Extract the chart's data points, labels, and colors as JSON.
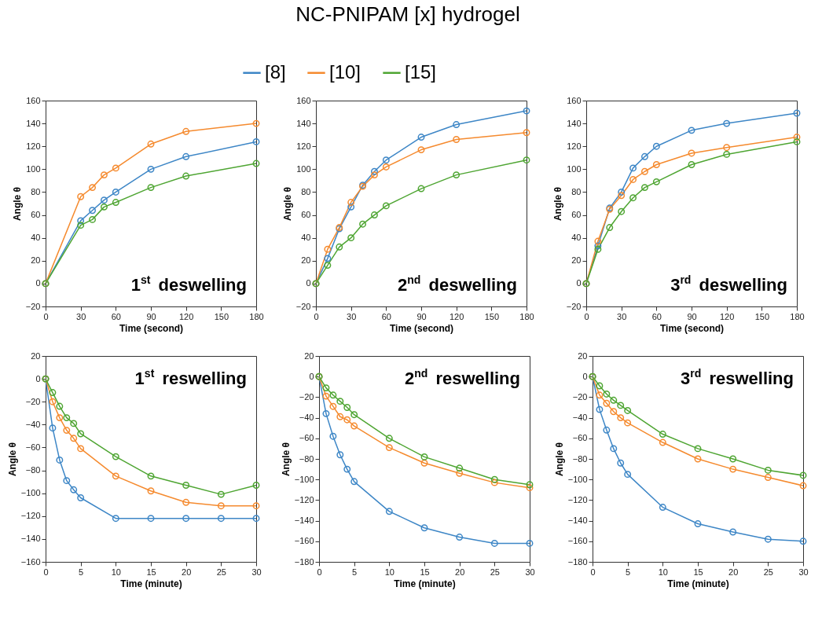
{
  "chart_data": [
    {
      "type": "other",
      "title": "NC-PNIPAM [x] hydrogel"
    },
    {
      "type": "line",
      "xlabel": "Time (second)",
      "ylabel": "Angle θ",
      "annotations": [
        "1$^{st}$ deswelling"
      ],
      "x": [
        0,
        30,
        40,
        50,
        60,
        90,
        120,
        180
      ],
      "xlim": [
        0,
        180
      ],
      "xticks": [
        0,
        30,
        60,
        90,
        120,
        150,
        180
      ],
      "ylim": [
        -20,
        160
      ],
      "yticks": [
        -20,
        0,
        20,
        40,
        60,
        80,
        100,
        120,
        140,
        160
      ],
      "grid": false,
      "legend": "top",
      "marker": "circle",
      "line_style": "solid",
      "series": [
        {
          "name": "[8]",
          "color": "#3d86c6",
          "values": [
            0,
            55,
            64,
            73,
            80,
            100,
            111,
            124
          ]
        },
        {
          "name": "[10]",
          "color": "#f58a2e",
          "values": [
            0,
            76,
            84,
            95,
            101,
            122,
            133,
            140
          ]
        },
        {
          "name": "[15]",
          "color": "#4ea532",
          "values": [
            0,
            51,
            56,
            67,
            71,
            84,
            94,
            105
          ]
        }
      ]
    },
    {
      "type": "line",
      "xlabel": "Time (second)",
      "ylabel": "Angle θ",
      "annotations": [
        "2$^{nd}$ deswelling"
      ],
      "x": [
        0,
        10,
        20,
        30,
        40,
        50,
        60,
        90,
        120,
        180
      ],
      "xlim": [
        0,
        180
      ],
      "xticks": [
        0,
        30,
        60,
        90,
        120,
        150,
        180
      ],
      "ylim": [
        -20,
        160
      ],
      "yticks": [
        -20,
        0,
        20,
        40,
        60,
        80,
        100,
        120,
        140,
        160
      ],
      "grid": false,
      "marker": "circle",
      "line_style": "solid",
      "series": [
        {
          "color": "#3d86c6",
          "values": [
            0,
            22,
            48,
            67,
            86,
            98,
            108,
            128,
            139,
            151
          ]
        },
        {
          "color": "#f58a2e",
          "values": [
            0,
            30,
            49,
            71,
            85,
            95,
            102,
            117,
            126,
            132
          ]
        },
        {
          "color": "#4ea532",
          "values": [
            0,
            16,
            32,
            40,
            52,
            60,
            68,
            83,
            95,
            108
          ]
        }
      ]
    },
    {
      "type": "line",
      "xlabel": "Time (second)",
      "ylabel": "Angle θ",
      "annotations": [
        "3$^{rd}$ deswelling"
      ],
      "x": [
        0,
        10,
        20,
        30,
        40,
        50,
        60,
        90,
        120,
        180
      ],
      "xlim": [
        0,
        180
      ],
      "xticks": [
        0,
        30,
        60,
        90,
        120,
        150,
        180
      ],
      "ylim": [
        -20,
        160
      ],
      "yticks": [
        -20,
        0,
        20,
        40,
        60,
        80,
        100,
        120,
        140,
        160
      ],
      "grid": false,
      "marker": "circle",
      "line_style": "solid",
      "series": [
        {
          "color": "#3d86c6",
          "values": [
            0,
            33,
            66,
            80,
            101,
            111,
            120,
            134,
            140,
            149
          ]
        },
        {
          "color": "#f58a2e",
          "values": [
            0,
            37,
            65,
            77,
            91,
            98,
            104,
            114,
            119,
            128
          ]
        },
        {
          "color": "#4ea532",
          "values": [
            0,
            30,
            49,
            63,
            75,
            84,
            89,
            104,
            113,
            124
          ]
        }
      ]
    },
    {
      "type": "line",
      "xlabel": "Time (minute)",
      "ylabel": "Angle θ",
      "annotations": [
        "1$^{st}$ reswelling"
      ],
      "x": [
        0,
        1,
        2,
        3,
        4,
        5,
        10,
        15,
        20,
        25,
        30
      ],
      "xlim": [
        0,
        30
      ],
      "xticks": [
        0,
        5,
        10,
        15,
        20,
        25,
        30
      ],
      "ylim": [
        -160,
        20
      ],
      "yticks": [
        -160,
        -140,
        -120,
        -100,
        -80,
        -60,
        -40,
        -20,
        0,
        20
      ],
      "grid": false,
      "marker": "circle",
      "line_style": "solid",
      "series": [
        {
          "color": "#3d86c6",
          "values": [
            0,
            -43,
            -71,
            -89,
            -97,
            -104,
            -122,
            -122,
            -122,
            -122,
            -122
          ]
        },
        {
          "color": "#f58a2e",
          "values": [
            0,
            -20,
            -34,
            -45,
            -52,
            -61,
            -85,
            -98,
            -108,
            -111,
            -111
          ]
        },
        {
          "color": "#4ea532",
          "values": [
            0,
            -12,
            -24,
            -34,
            -39,
            -48,
            -68,
            -85,
            -93,
            -101,
            -93
          ]
        }
      ]
    },
    {
      "type": "line",
      "xlabel": "Time (minute)",
      "ylabel": "Angle θ",
      "annotations": [
        "2$^{nd}$ reswelling"
      ],
      "x": [
        0,
        1,
        2,
        3,
        4,
        5,
        10,
        15,
        20,
        25,
        30
      ],
      "xlim": [
        0,
        30
      ],
      "xticks": [
        0,
        5,
        10,
        15,
        20,
        25,
        30
      ],
      "ylim": [
        -180,
        20
      ],
      "yticks": [
        -180,
        -160,
        -140,
        -120,
        -100,
        -80,
        -60,
        -40,
        -20,
        0,
        20
      ],
      "grid": false,
      "marker": "circle",
      "line_style": "solid",
      "series": [
        {
          "color": "#3d86c6",
          "values": [
            0,
            -36,
            -58,
            -76,
            -90,
            -102,
            -131,
            -147,
            -156,
            -162,
            -162
          ]
        },
        {
          "color": "#f58a2e",
          "values": [
            0,
            -19,
            -29,
            -39,
            -42,
            -48,
            -69,
            -84,
            -94,
            -103,
            -108
          ]
        },
        {
          "color": "#4ea532",
          "values": [
            0,
            -11,
            -18,
            -24,
            -30,
            -37,
            -60,
            -78,
            -89,
            -100,
            -105
          ]
        }
      ]
    },
    {
      "type": "line",
      "xlabel": "Time (minute)",
      "ylabel": "Angle θ",
      "annotations": [
        "3$^{rd}$ reswelling"
      ],
      "x": [
        0,
        1,
        2,
        3,
        4,
        5,
        10,
        15,
        20,
        25,
        30
      ],
      "xlim": [
        0,
        30
      ],
      "xticks": [
        0,
        5,
        10,
        15,
        20,
        25,
        30
      ],
      "ylim": [
        -180,
        20
      ],
      "yticks": [
        -180,
        -160,
        -140,
        -120,
        -100,
        -80,
        -60,
        -40,
        -20,
        0,
        20
      ],
      "grid": false,
      "marker": "circle",
      "line_style": "solid",
      "series": [
        {
          "color": "#3d86c6",
          "values": [
            0,
            -32,
            -52,
            -70,
            -84,
            -95,
            -127,
            -143,
            -151,
            -158,
            -160
          ]
        },
        {
          "color": "#f58a2e",
          "values": [
            0,
            -18,
            -26,
            -34,
            -40,
            -45,
            -64,
            -80,
            -90,
            -98,
            -106
          ]
        },
        {
          "color": "#4ea532",
          "values": [
            0,
            -9,
            -17,
            -23,
            -28,
            -33,
            -56,
            -70,
            -80,
            -91,
            -96
          ]
        }
      ]
    }
  ]
}
